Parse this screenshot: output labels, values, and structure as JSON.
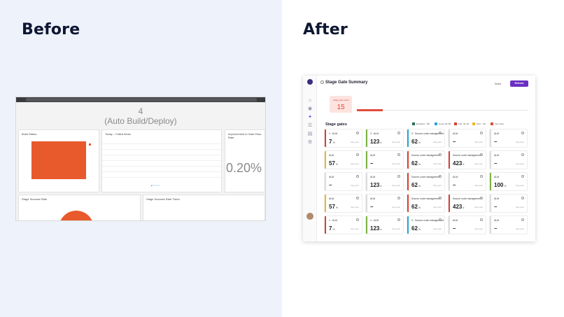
{
  "headings": {
    "before": "Before",
    "after": "After"
  },
  "colors": {
    "left_background": "#eef2fa",
    "accent_orange": "#e8592b",
    "accent_purple": "#6b2fc4"
  },
  "old_dashboard": {
    "banner_number": "4",
    "banner_text": "(Auto Build/Deploy)",
    "card_titles": [
      "Build Status",
      "Today – Failed Items",
      "Improvement in Gate Pass Rate",
      "Stage Success Rate",
      "Stage Success Rate Trend"
    ],
    "percent": "0.20%"
  },
  "new_dashboard": {
    "title": "Stage Gate Summary",
    "share_label": "Share",
    "refresh_label": "Refresh",
    "score_label": "Stage gate score",
    "score_value": "15",
    "gates_title": "Stage gates",
    "legend": [
      {
        "label": "Excellent: >80",
        "color": "#2b6f5e"
      },
      {
        "label": "Good: 60–80",
        "color": "#2aa3d8"
      },
      {
        "label": "Fair: 40–60",
        "color": "#d9402f"
      },
      {
        "label": "Poor: <40",
        "color": "#f0b722"
      },
      {
        "label": "Very Poor",
        "color": "#e04b3c"
      }
    ],
    "gates": [
      {
        "name": "1 - ALM",
        "value": "7",
        "unit": "%",
        "note": "Very poor",
        "color": "#d9402f"
      },
      {
        "name": "2 - ALM",
        "value": "123",
        "unit": "d",
        "note": "Very poor",
        "color": "#7cb342"
      },
      {
        "name": "3 - Source code management",
        "value": "62",
        "unit": "%",
        "note": "Very poor",
        "color": "#2aa3d8"
      },
      {
        "name": "ALM",
        "value": "–",
        "unit": "",
        "note": "Very poor",
        "color": "#dddddd"
      },
      {
        "name": "ALM",
        "value": "–",
        "unit": "",
        "note": "Very poor",
        "color": "#dddddd"
      },
      {
        "name": "ALM",
        "value": "57",
        "unit": "%",
        "note": "Very poor",
        "color": "#f0b722"
      },
      {
        "name": "ALM",
        "value": "–",
        "unit": "",
        "note": "Very poor",
        "color": "#7cb342"
      },
      {
        "name": "Source code management",
        "value": "62",
        "unit": "%",
        "note": "Very poor",
        "color": "#d9402f"
      },
      {
        "name": "Source code management",
        "value": "423",
        "unit": "d",
        "note": "Very poor",
        "color": "#d9402f"
      },
      {
        "name": "ALM",
        "value": "–",
        "unit": "",
        "note": "Very poor",
        "color": "#dddddd"
      },
      {
        "name": "ALM",
        "value": "–",
        "unit": "",
        "note": "Very poor",
        "color": "#dddddd"
      },
      {
        "name": "ALM",
        "value": "123",
        "unit": "d",
        "note": "Very poor",
        "color": "#dddddd"
      },
      {
        "name": "Source code management",
        "value": "62",
        "unit": "%",
        "note": "Very poor",
        "color": "#d9402f"
      },
      {
        "name": "ALM",
        "value": "–",
        "unit": "",
        "note": "Very poor",
        "color": "#dddddd"
      },
      {
        "name": "ALM",
        "value": "100",
        "unit": "%",
        "note": "Very poor",
        "color": "#7cb342"
      },
      {
        "name": "ALM",
        "value": "57",
        "unit": "%",
        "note": "Very poor",
        "color": "#f0b722"
      },
      {
        "name": "ALM",
        "value": "–",
        "unit": "",
        "note": "Very poor",
        "color": "#dddddd"
      },
      {
        "name": "Source code management",
        "value": "62",
        "unit": "%",
        "note": "Very poor",
        "color": "#d9402f"
      },
      {
        "name": "Source code management",
        "value": "423",
        "unit": "d",
        "note": "Very poor",
        "color": "#d9402f"
      },
      {
        "name": "ALM",
        "value": "–",
        "unit": "",
        "note": "Very poor",
        "color": "#dddddd"
      },
      {
        "name": "1 - ALM",
        "value": "7",
        "unit": "%",
        "note": "Very poor",
        "color": "#d9402f"
      },
      {
        "name": "2 - ALM",
        "value": "123",
        "unit": "d",
        "note": "Very poor",
        "color": "#7cb342"
      },
      {
        "name": "3 - Source code management",
        "value": "62",
        "unit": "%",
        "note": "Very poor",
        "color": "#2aa3d8"
      },
      {
        "name": "ALM",
        "value": "–",
        "unit": "",
        "note": "Very poor",
        "color": "#dddddd"
      },
      {
        "name": "ALM",
        "value": "–",
        "unit": "",
        "note": "Very poor",
        "color": "#dddddd"
      }
    ],
    "nav_icons": [
      "home-icon",
      "info-icon",
      "gates-icon",
      "list-icon",
      "report-icon",
      "settings-icon"
    ]
  }
}
